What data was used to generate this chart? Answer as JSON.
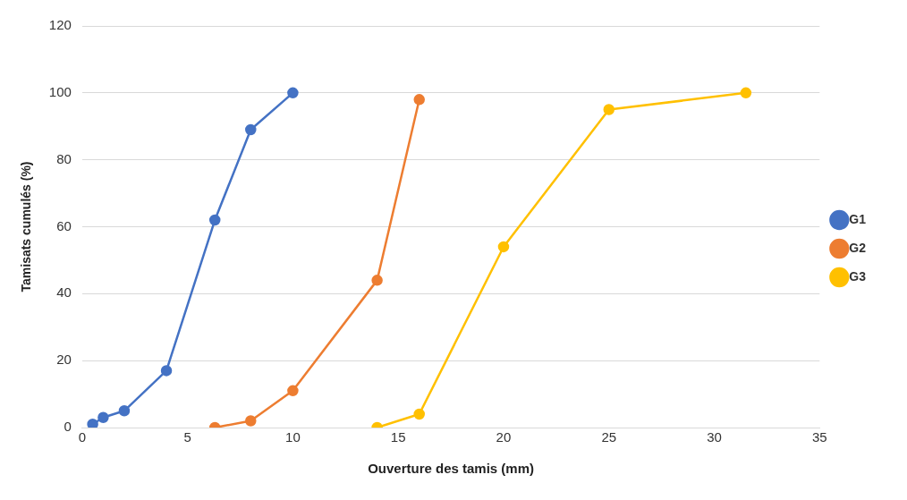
{
  "chart_data": {
    "type": "line",
    "xlabel": "Ouverture des tamis (mm)",
    "ylabel": "Tamisats cumulés (%)",
    "series": [
      {
        "name": "G1",
        "color": "#4472c4",
        "x": [
          0.5,
          1,
          2,
          4,
          6.3,
          8,
          10
        ],
        "values": [
          1,
          3,
          5,
          17,
          62,
          89,
          100
        ]
      },
      {
        "name": "G2",
        "color": "#ed7d31",
        "x": [
          6.3,
          8,
          10,
          14,
          16
        ],
        "values": [
          0,
          2,
          11,
          44,
          98
        ]
      },
      {
        "name": "G3",
        "color": "#ffc000",
        "x": [
          14,
          16,
          20,
          25,
          31.5
        ],
        "values": [
          0,
          4,
          54,
          95,
          100
        ]
      }
    ],
    "xlim": [
      0,
      35
    ],
    "xticks": [
      0,
      5,
      10,
      15,
      20,
      25,
      30,
      35
    ],
    "ylim": [
      0,
      120
    ],
    "yticks": [
      0,
      20,
      40,
      60,
      80,
      100,
      120
    ],
    "grid": "y",
    "legend": "right",
    "marker": "circle",
    "line_style": "solid"
  }
}
